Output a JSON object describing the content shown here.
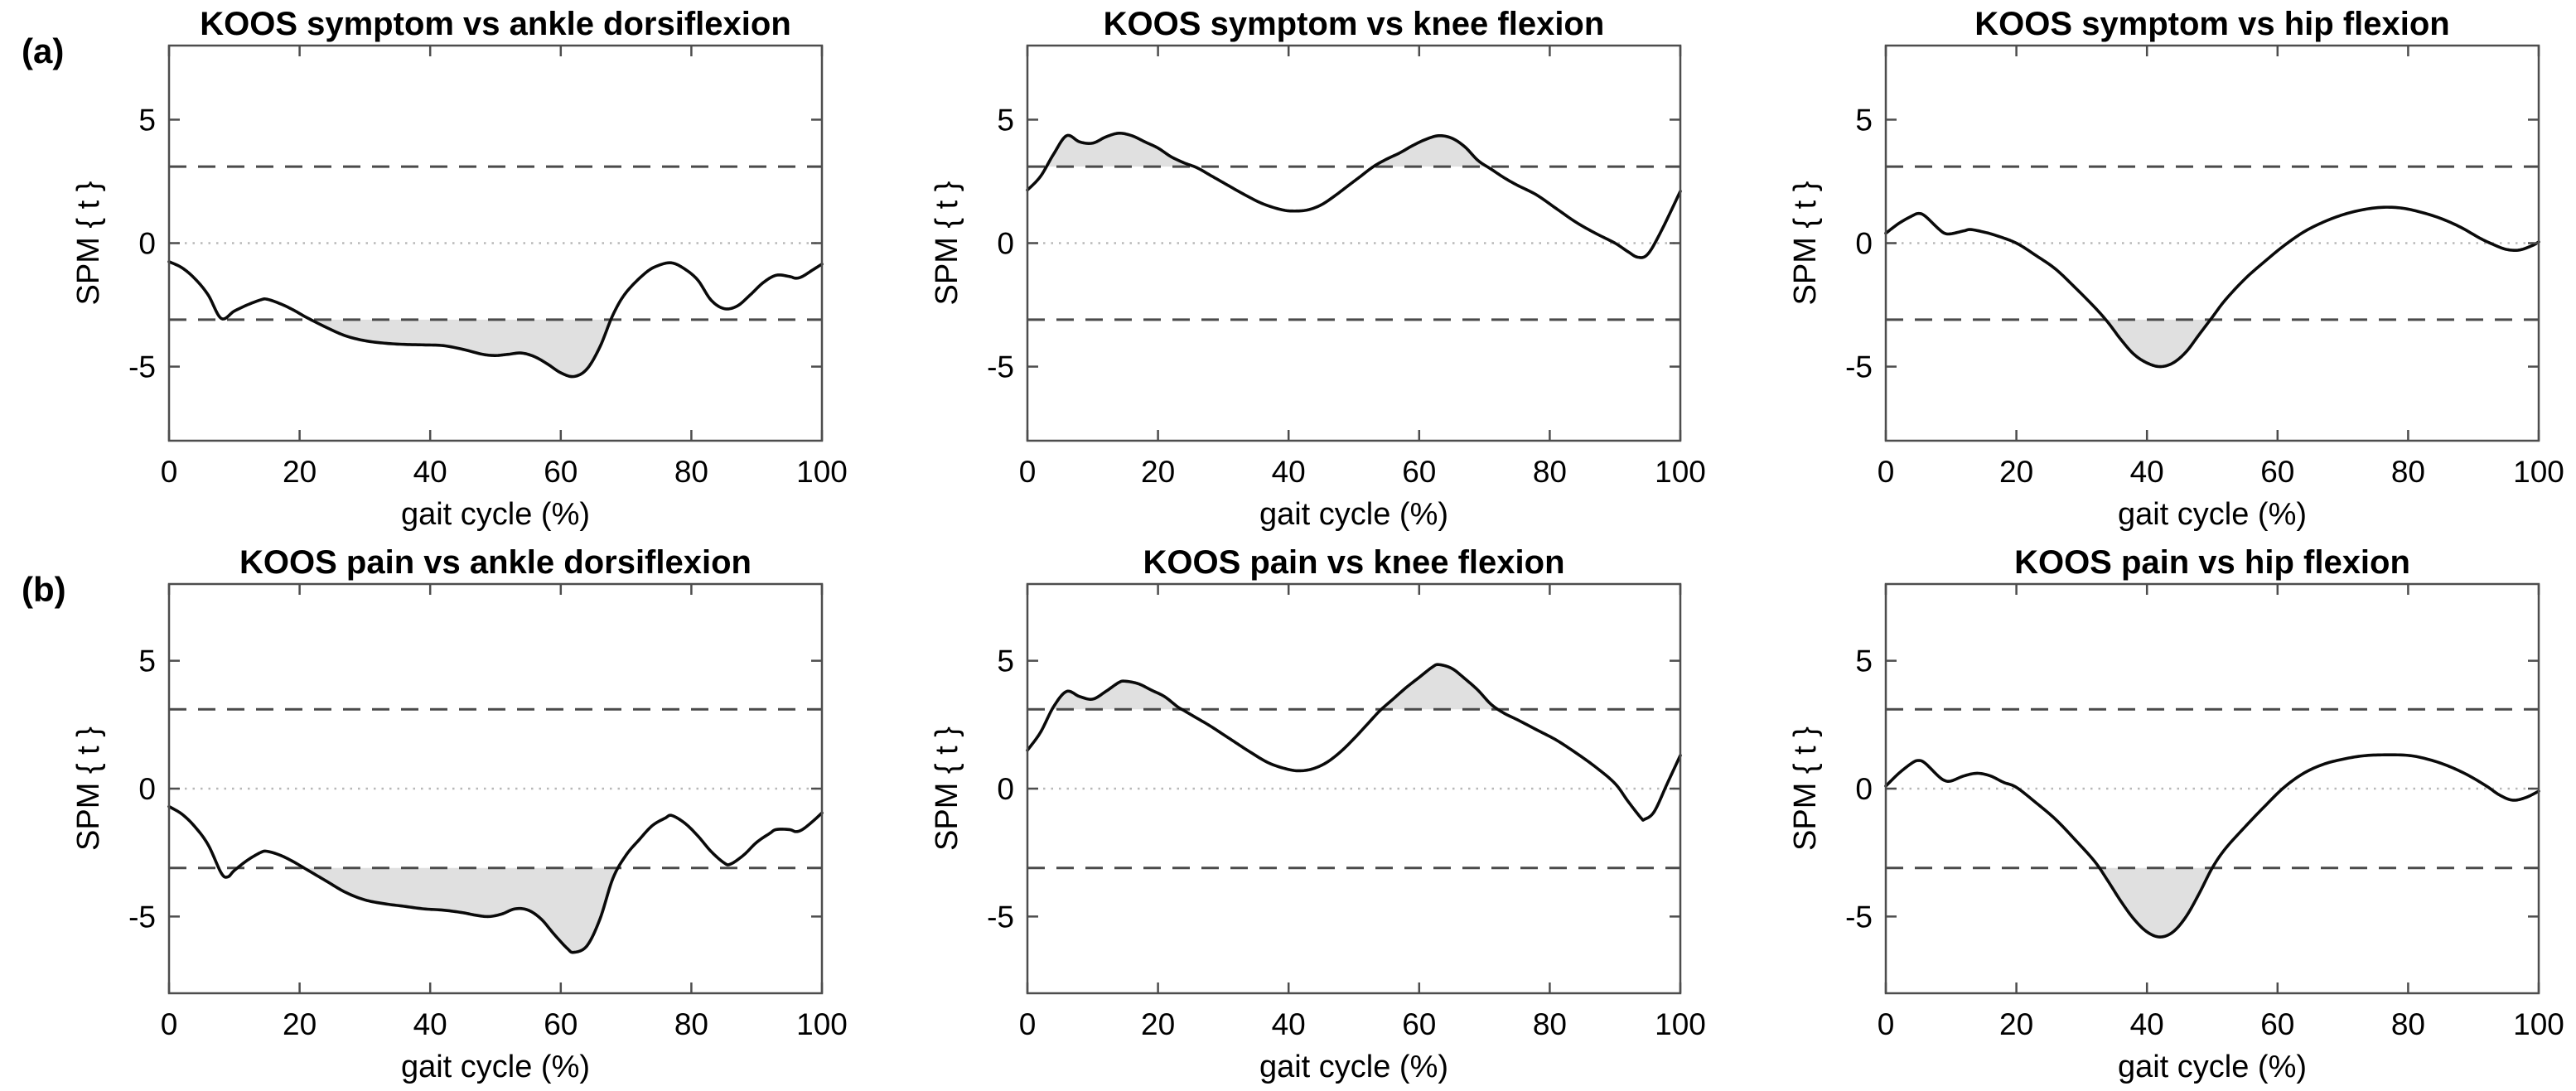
{
  "figure": {
    "row_labels": [
      "(a)",
      "(b)"
    ],
    "ylabel": "SPM { t }",
    "xlabel": "gait cycle (%)",
    "colors": {
      "curve": "#0a0a0a",
      "threshold_dash": "#4a4a4a",
      "zero_dot": "#b8b8b8",
      "fill": "#e0e0e0",
      "axis": "#4d4d4d",
      "text": "#000000"
    }
  },
  "chart_data": [
    {
      "type": "line",
      "title": "KOOS symptom vs ankle dorsiflexion",
      "xlabel": "gait cycle (%)",
      "ylabel": "SPM { t }",
      "xlim": [
        0,
        100
      ],
      "ylim": [
        -8,
        8
      ],
      "xticks": [
        0,
        20,
        40,
        60,
        80,
        100
      ],
      "yticks": [
        5,
        0,
        -5
      ],
      "threshold": 3.1,
      "zero_line": true,
      "shaded_regions": [
        {
          "x_from": 21.3,
          "x_to": 67.4,
          "side": "below"
        }
      ],
      "points": [
        [
          0,
          -0.75
        ],
        [
          2,
          -1.0
        ],
        [
          4,
          -1.45
        ],
        [
          6,
          -2.1
        ],
        [
          8,
          -3.05
        ],
        [
          10,
          -2.75
        ],
        [
          12,
          -2.5
        ],
        [
          14,
          -2.3
        ],
        [
          15,
          -2.27
        ],
        [
          17,
          -2.45
        ],
        [
          19,
          -2.7
        ],
        [
          21,
          -3.0
        ],
        [
          24,
          -3.4
        ],
        [
          27,
          -3.75
        ],
        [
          30,
          -3.95
        ],
        [
          33,
          -4.05
        ],
        [
          36,
          -4.1
        ],
        [
          39,
          -4.12
        ],
        [
          42,
          -4.15
        ],
        [
          45,
          -4.3
        ],
        [
          48,
          -4.5
        ],
        [
          50,
          -4.55
        ],
        [
          52,
          -4.5
        ],
        [
          54,
          -4.45
        ],
        [
          56,
          -4.6
        ],
        [
          58,
          -4.9
        ],
        [
          60,
          -5.25
        ],
        [
          62,
          -5.4
        ],
        [
          64,
          -5.1
        ],
        [
          66,
          -4.2
        ],
        [
          68,
          -2.9
        ],
        [
          70,
          -2.0
        ],
        [
          73,
          -1.2
        ],
        [
          75,
          -0.9
        ],
        [
          77,
          -0.8
        ],
        [
          79,
          -1.05
        ],
        [
          81,
          -1.5
        ],
        [
          83,
          -2.3
        ],
        [
          85,
          -2.65
        ],
        [
          87,
          -2.55
        ],
        [
          89,
          -2.1
        ],
        [
          91,
          -1.6
        ],
        [
          93,
          -1.3
        ],
        [
          95,
          -1.35
        ],
        [
          96,
          -1.42
        ],
        [
          97,
          -1.35
        ],
        [
          98.5,
          -1.1
        ],
        [
          100,
          -0.85
        ]
      ]
    },
    {
      "type": "line",
      "title": "KOOS symptom vs knee flexion",
      "xlabel": "gait cycle (%)",
      "ylabel": "SPM { t }",
      "xlim": [
        0,
        100
      ],
      "ylim": [
        -8,
        8
      ],
      "xticks": [
        0,
        20,
        40,
        60,
        80,
        100
      ],
      "yticks": [
        5,
        0,
        -5
      ],
      "threshold": 3.1,
      "zero_line": true,
      "shaded_regions": [
        {
          "x_from": 2.9,
          "x_to": 25.6,
          "side": "above"
        },
        {
          "x_from": 53.0,
          "x_to": 70.3,
          "side": "above"
        }
      ],
      "points": [
        [
          0,
          2.15
        ],
        [
          2,
          2.7
        ],
        [
          4,
          3.6
        ],
        [
          6,
          4.35
        ],
        [
          8,
          4.1
        ],
        [
          10,
          4.05
        ],
        [
          12,
          4.3
        ],
        [
          14,
          4.45
        ],
        [
          16,
          4.35
        ],
        [
          18,
          4.1
        ],
        [
          20,
          3.85
        ],
        [
          22,
          3.5
        ],
        [
          24,
          3.25
        ],
        [
          26,
          3.05
        ],
        [
          28,
          2.75
        ],
        [
          30,
          2.45
        ],
        [
          33,
          2.0
        ],
        [
          36,
          1.6
        ],
        [
          39,
          1.35
        ],
        [
          41,
          1.3
        ],
        [
          43,
          1.35
        ],
        [
          45,
          1.55
        ],
        [
          47,
          1.9
        ],
        [
          49,
          2.3
        ],
        [
          51,
          2.7
        ],
        [
          53,
          3.1
        ],
        [
          55,
          3.4
        ],
        [
          57,
          3.65
        ],
        [
          59,
          3.95
        ],
        [
          61,
          4.2
        ],
        [
          63,
          4.35
        ],
        [
          65,
          4.25
        ],
        [
          67,
          3.9
        ],
        [
          69,
          3.35
        ],
        [
          71,
          3.0
        ],
        [
          73,
          2.65
        ],
        [
          75,
          2.35
        ],
        [
          78,
          1.95
        ],
        [
          81,
          1.4
        ],
        [
          84,
          0.85
        ],
        [
          87,
          0.4
        ],
        [
          90,
          0.0
        ],
        [
          92,
          -0.35
        ],
        [
          93.5,
          -0.57
        ],
        [
          95,
          -0.45
        ],
        [
          97,
          0.45
        ],
        [
          100,
          2.1
        ]
      ]
    },
    {
      "type": "line",
      "title": "KOOS symptom vs hip flexion",
      "xlabel": "gait cycle (%)",
      "ylabel": "SPM { t }",
      "xlim": [
        0,
        100
      ],
      "ylim": [
        -8,
        8
      ],
      "xticks": [
        0,
        20,
        40,
        60,
        80,
        100
      ],
      "yticks": [
        5,
        0,
        -5
      ],
      "threshold": 3.1,
      "zero_line": true,
      "shaded_regions": [
        {
          "x_from": 33.7,
          "x_to": 49.6,
          "side": "below"
        }
      ],
      "points": [
        [
          0,
          0.4
        ],
        [
          2,
          0.8
        ],
        [
          4,
          1.1
        ],
        [
          5,
          1.2
        ],
        [
          6,
          1.1
        ],
        [
          8,
          0.6
        ],
        [
          9,
          0.4
        ],
        [
          10,
          0.38
        ],
        [
          12,
          0.5
        ],
        [
          13,
          0.55
        ],
        [
          15,
          0.45
        ],
        [
          17,
          0.3
        ],
        [
          20,
          0.0
        ],
        [
          23,
          -0.5
        ],
        [
          26,
          -1.05
        ],
        [
          29,
          -1.8
        ],
        [
          32,
          -2.6
        ],
        [
          34,
          -3.2
        ],
        [
          36,
          -3.9
        ],
        [
          38,
          -4.5
        ],
        [
          40,
          -4.85
        ],
        [
          42,
          -5.0
        ],
        [
          44,
          -4.85
        ],
        [
          46,
          -4.4
        ],
        [
          48,
          -3.7
        ],
        [
          50,
          -3.0
        ],
        [
          52,
          -2.3
        ],
        [
          55,
          -1.45
        ],
        [
          58,
          -0.75
        ],
        [
          61,
          -0.1
        ],
        [
          64,
          0.45
        ],
        [
          67,
          0.85
        ],
        [
          70,
          1.15
        ],
        [
          73,
          1.35
        ],
        [
          76,
          1.45
        ],
        [
          79,
          1.42
        ],
        [
          82,
          1.25
        ],
        [
          85,
          1.0
        ],
        [
          88,
          0.65
        ],
        [
          91,
          0.2
        ],
        [
          93,
          -0.05
        ],
        [
          95,
          -0.25
        ],
        [
          97,
          -0.28
        ],
        [
          99,
          -0.1
        ],
        [
          100,
          0.05
        ]
      ]
    },
    {
      "type": "line",
      "title": "KOOS pain vs ankle dorsiflexion",
      "xlabel": "gait cycle (%)",
      "ylabel": "SPM { t }",
      "xlim": [
        0,
        100
      ],
      "ylim": [
        -8,
        8
      ],
      "xticks": [
        0,
        20,
        40,
        60,
        80,
        100
      ],
      "yticks": [
        5,
        0,
        -5
      ],
      "threshold": 3.1,
      "zero_line": true,
      "shaded_regions": [
        {
          "x_from": 20.8,
          "x_to": 68.3,
          "side": "below"
        }
      ],
      "points": [
        [
          0,
          -0.7
        ],
        [
          2,
          -1.0
        ],
        [
          4,
          -1.5
        ],
        [
          6,
          -2.2
        ],
        [
          8,
          -3.3
        ],
        [
          9,
          -3.45
        ],
        [
          10,
          -3.2
        ],
        [
          12,
          -2.8
        ],
        [
          14,
          -2.5
        ],
        [
          15,
          -2.45
        ],
        [
          17,
          -2.6
        ],
        [
          19,
          -2.85
        ],
        [
          21,
          -3.15
        ],
        [
          24,
          -3.6
        ],
        [
          27,
          -4.05
        ],
        [
          30,
          -4.35
        ],
        [
          33,
          -4.5
        ],
        [
          36,
          -4.6
        ],
        [
          39,
          -4.7
        ],
        [
          42,
          -4.75
        ],
        [
          45,
          -4.85
        ],
        [
          47,
          -4.95
        ],
        [
          49,
          -5.0
        ],
        [
          51,
          -4.9
        ],
        [
          53,
          -4.7
        ],
        [
          55,
          -4.75
        ],
        [
          57,
          -5.1
        ],
        [
          59,
          -5.7
        ],
        [
          61,
          -6.25
        ],
        [
          62,
          -6.4
        ],
        [
          64,
          -6.15
        ],
        [
          66,
          -5.1
        ],
        [
          68,
          -3.5
        ],
        [
          70,
          -2.6
        ],
        [
          72,
          -2.0
        ],
        [
          74,
          -1.45
        ],
        [
          76,
          -1.15
        ],
        [
          77,
          -1.05
        ],
        [
          79,
          -1.35
        ],
        [
          81,
          -1.85
        ],
        [
          83,
          -2.45
        ],
        [
          85,
          -2.9
        ],
        [
          86,
          -2.95
        ],
        [
          88,
          -2.6
        ],
        [
          90,
          -2.1
        ],
        [
          92,
          -1.75
        ],
        [
          93,
          -1.6
        ],
        [
          95,
          -1.6
        ],
        [
          96,
          -1.68
        ],
        [
          97,
          -1.6
        ],
        [
          98.5,
          -1.3
        ],
        [
          100,
          -0.95
        ]
      ]
    },
    {
      "type": "line",
      "title": "KOOS pain vs knee flexion",
      "xlabel": "gait cycle (%)",
      "ylabel": "SPM { t }",
      "xlim": [
        0,
        100
      ],
      "ylim": [
        -8,
        8
      ],
      "xticks": [
        0,
        20,
        40,
        60,
        80,
        100
      ],
      "yticks": [
        5,
        0,
        -5
      ],
      "threshold": 3.1,
      "zero_line": true,
      "shaded_regions": [
        {
          "x_from": 3.6,
          "x_to": 23.8,
          "side": "above"
        },
        {
          "x_from": 53.9,
          "x_to": 72.4,
          "side": "above"
        }
      ],
      "points": [
        [
          0,
          1.5
        ],
        [
          2,
          2.2
        ],
        [
          4,
          3.2
        ],
        [
          6,
          3.8
        ],
        [
          8,
          3.6
        ],
        [
          10,
          3.5
        ],
        [
          12,
          3.8
        ],
        [
          14,
          4.15
        ],
        [
          15,
          4.2
        ],
        [
          17,
          4.1
        ],
        [
          19,
          3.85
        ],
        [
          21,
          3.6
        ],
        [
          23,
          3.2
        ],
        [
          24,
          3.05
        ],
        [
          26,
          2.75
        ],
        [
          28,
          2.45
        ],
        [
          31,
          1.95
        ],
        [
          34,
          1.45
        ],
        [
          37,
          1.0
        ],
        [
          40,
          0.75
        ],
        [
          42,
          0.7
        ],
        [
          44,
          0.8
        ],
        [
          46,
          1.05
        ],
        [
          48,
          1.45
        ],
        [
          50,
          1.95
        ],
        [
          52,
          2.5
        ],
        [
          54,
          3.05
        ],
        [
          56,
          3.5
        ],
        [
          58,
          3.95
        ],
        [
          60,
          4.35
        ],
        [
          62,
          4.75
        ],
        [
          63,
          4.85
        ],
        [
          65,
          4.7
        ],
        [
          67,
          4.3
        ],
        [
          69,
          3.85
        ],
        [
          71,
          3.3
        ],
        [
          73,
          2.95
        ],
        [
          75,
          2.7
        ],
        [
          78,
          2.3
        ],
        [
          81,
          1.9
        ],
        [
          84,
          1.4
        ],
        [
          87,
          0.85
        ],
        [
          90,
          0.2
        ],
        [
          92,
          -0.5
        ],
        [
          94,
          -1.15
        ],
        [
          94.5,
          -1.2
        ],
        [
          96,
          -0.9
        ],
        [
          98,
          0.2
        ],
        [
          100,
          1.3
        ]
      ]
    },
    {
      "type": "line",
      "title": "KOOS pain vs hip flexion",
      "xlabel": "gait cycle (%)",
      "ylabel": "SPM { t }",
      "xlim": [
        0,
        100
      ],
      "ylim": [
        -8,
        8
      ],
      "xticks": [
        0,
        20,
        40,
        60,
        80,
        100
      ],
      "yticks": [
        5,
        0,
        -5
      ],
      "threshold": 3.1,
      "zero_line": true,
      "shaded_regions": [
        {
          "x_from": 33.2,
          "x_to": 50.2,
          "side": "below"
        }
      ],
      "points": [
        [
          0,
          0.1
        ],
        [
          2,
          0.6
        ],
        [
          4,
          1.0
        ],
        [
          5,
          1.1
        ],
        [
          6,
          1.0
        ],
        [
          8,
          0.5
        ],
        [
          9,
          0.32
        ],
        [
          10,
          0.3
        ],
        [
          12,
          0.5
        ],
        [
          14,
          0.6
        ],
        [
          16,
          0.5
        ],
        [
          18,
          0.25
        ],
        [
          20,
          0.05
        ],
        [
          23,
          -0.55
        ],
        [
          26,
          -1.2
        ],
        [
          29,
          -2.0
        ],
        [
          32,
          -2.85
        ],
        [
          34,
          -3.6
        ],
        [
          36,
          -4.4
        ],
        [
          38,
          -5.1
        ],
        [
          40,
          -5.6
        ],
        [
          42,
          -5.8
        ],
        [
          44,
          -5.6
        ],
        [
          46,
          -5.0
        ],
        [
          48,
          -4.1
        ],
        [
          50,
          -3.1
        ],
        [
          52,
          -2.35
        ],
        [
          55,
          -1.5
        ],
        [
          58,
          -0.7
        ],
        [
          61,
          0.05
        ],
        [
          64,
          0.6
        ],
        [
          67,
          0.95
        ],
        [
          70,
          1.15
        ],
        [
          73,
          1.28
        ],
        [
          76,
          1.32
        ],
        [
          80,
          1.3
        ],
        [
          83,
          1.15
        ],
        [
          86,
          0.9
        ],
        [
          89,
          0.55
        ],
        [
          92,
          0.1
        ],
        [
          94,
          -0.25
        ],
        [
          96,
          -0.45
        ],
        [
          98,
          -0.35
        ],
        [
          100,
          -0.1
        ]
      ]
    }
  ]
}
